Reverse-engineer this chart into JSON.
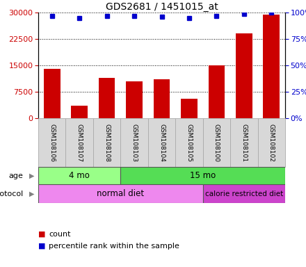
{
  "title": "GDS2681 / 1451015_at",
  "samples": [
    "GSM108106",
    "GSM108107",
    "GSM108108",
    "GSM108103",
    "GSM108104",
    "GSM108105",
    "GSM108100",
    "GSM108101",
    "GSM108102"
  ],
  "counts": [
    14000,
    3500,
    11500,
    10500,
    11000,
    5500,
    15000,
    24000,
    29500
  ],
  "percentile_ranks": [
    97,
    95,
    97,
    97,
    96,
    95,
    97,
    99,
    100
  ],
  "bar_color": "#cc0000",
  "dot_color": "#0000cc",
  "ylim_left": [
    0,
    30000
  ],
  "yticks_left": [
    0,
    7500,
    15000,
    22500,
    30000
  ],
  "ylim_right": [
    0,
    100
  ],
  "yticks_right": [
    0,
    25,
    50,
    75,
    100
  ],
  "age_groups": [
    {
      "label": "4 mo",
      "start": 0,
      "end": 3,
      "color": "#99ff88"
    },
    {
      "label": "15 mo",
      "start": 3,
      "end": 9,
      "color": "#55dd55"
    }
  ],
  "protocol_groups": [
    {
      "label": "normal diet",
      "start": 0,
      "end": 6,
      "color": "#ee88ee"
    },
    {
      "label": "calorie restricted diet",
      "start": 6,
      "end": 9,
      "color": "#cc44cc"
    }
  ],
  "legend_count_label": "count",
  "legend_pct_label": "percentile rank within the sample",
  "bar_color_leg": "#cc0000",
  "dot_color_leg": "#0000cc",
  "tick_color_left": "#cc0000",
  "tick_color_right": "#0000cc",
  "sample_box_color": "#d8d8d8",
  "sample_box_edge": "#aaaaaa"
}
